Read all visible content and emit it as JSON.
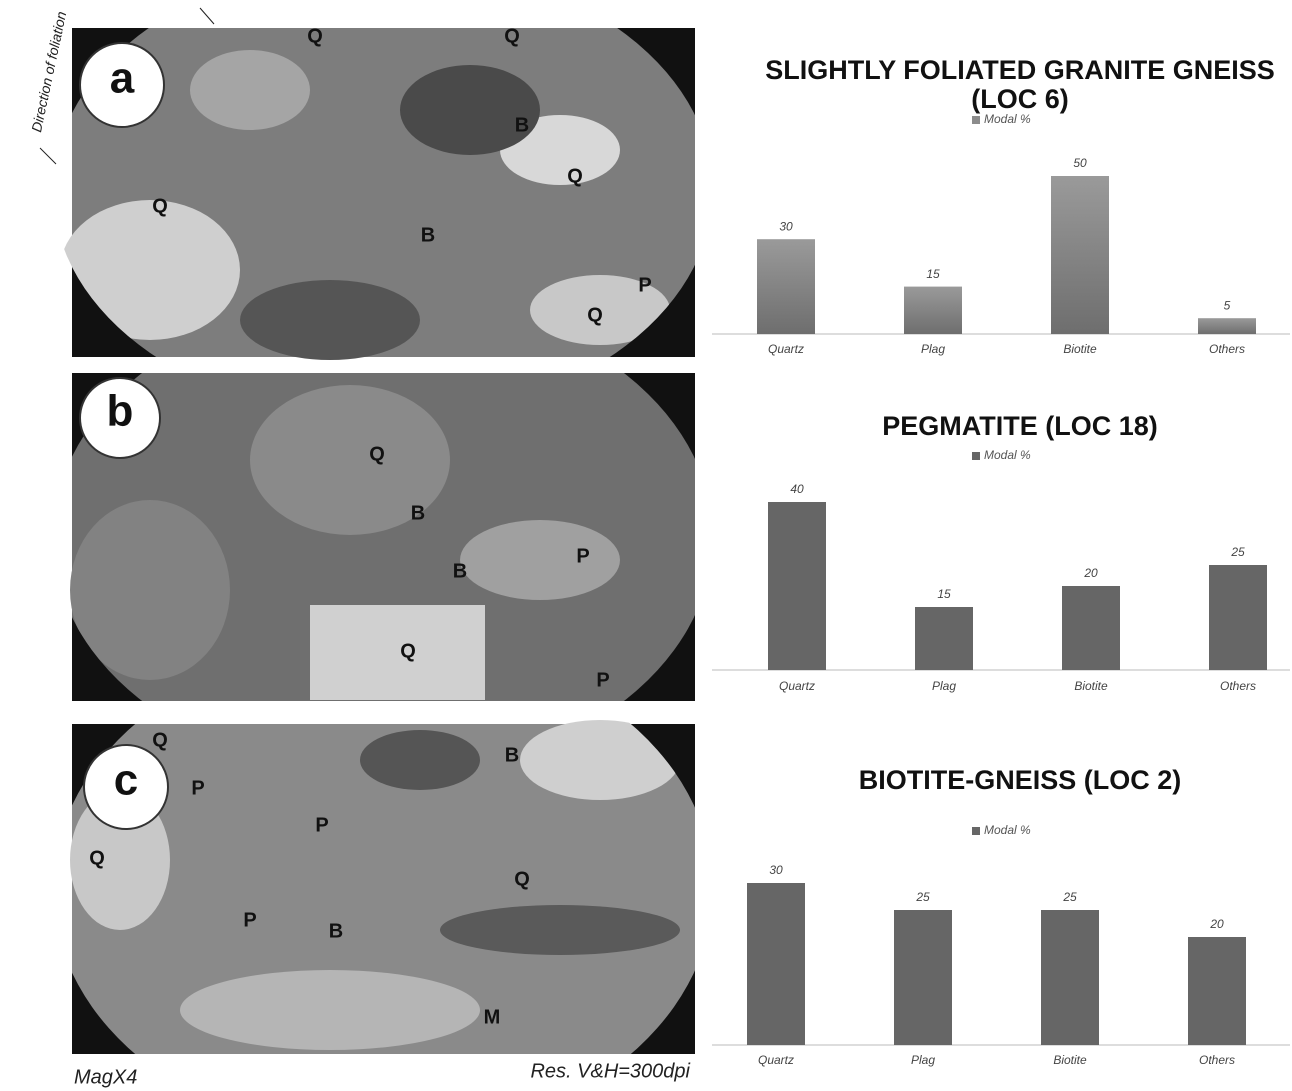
{
  "annotations": {
    "foliation": "Direction of foliation",
    "magnification": "MagX4",
    "resolution": "Res. V&H=300dpi"
  },
  "panels": [
    {
      "label": "a",
      "minerals": [
        "Q",
        "Q",
        "B",
        "Q",
        "Q",
        "B",
        "P",
        "Q"
      ]
    },
    {
      "label": "b",
      "minerals": [
        "Q",
        "B",
        "P",
        "B",
        "Q",
        "P"
      ]
    },
    {
      "label": "c",
      "minerals": [
        "Q",
        "B",
        "P",
        "P",
        "Q",
        "Q",
        "P",
        "B",
        "M"
      ]
    }
  ],
  "chart_data": [
    {
      "type": "bar",
      "title": "SLIGHTLY FOLIATED GRANITE GNEISS (LOC 6)",
      "categories": [
        "Quartz",
        "Plag",
        "Biotite",
        "Others"
      ],
      "series": [
        {
          "name": "Modal %",
          "color": "#8c8c8c",
          "values": [
            30,
            15,
            50,
            5
          ]
        }
      ]
    },
    {
      "type": "bar",
      "title": "PEGMATITE (LOC 18)",
      "categories": [
        "Quartz",
        "Plag",
        "Biotite",
        "Others"
      ],
      "series": [
        {
          "name": "Modal %",
          "color": "#666666",
          "values": [
            40,
            15,
            20,
            25
          ]
        }
      ]
    },
    {
      "type": "bar",
      "title": "BIOTITE-GNEISS (LOC 2)",
      "categories": [
        "Quartz",
        "Plag",
        "Biotite",
        "Others"
      ],
      "series": [
        {
          "name": "Modal %",
          "color": "#666666",
          "values": [
            30,
            25,
            25,
            20
          ]
        }
      ]
    }
  ]
}
